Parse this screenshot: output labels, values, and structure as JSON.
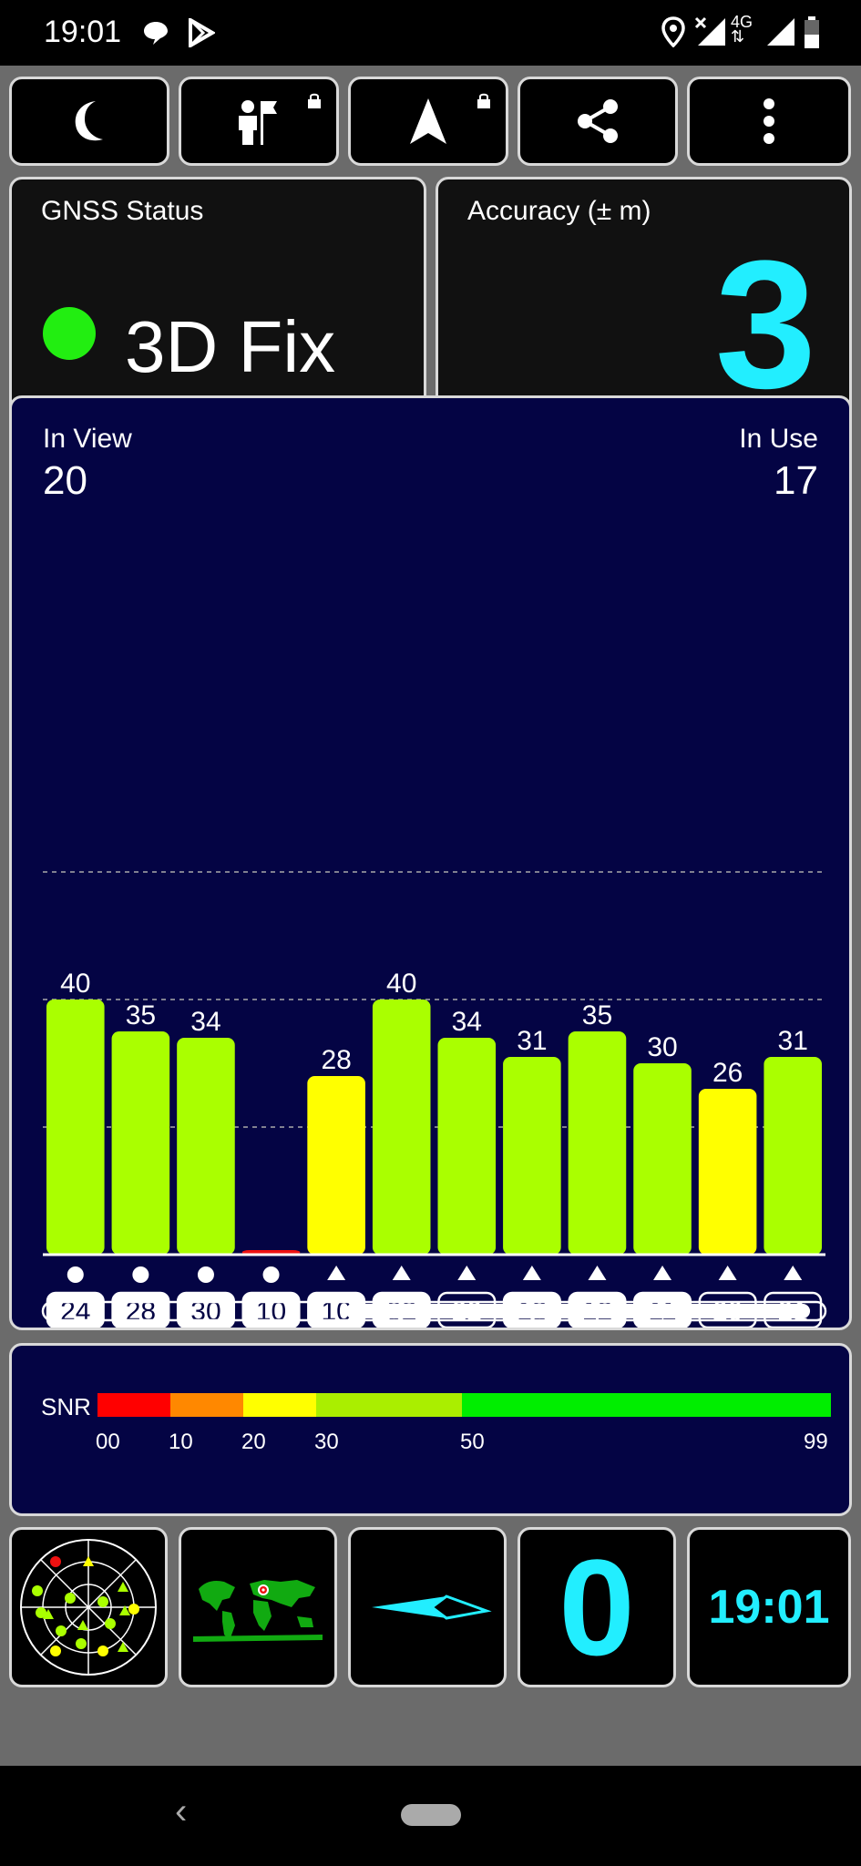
{
  "status_bar": {
    "time": "19:01",
    "icons": [
      "chat-icon",
      "play-store-icon",
      "location-icon",
      "signal-x-icon",
      "4g-icon",
      "signal-icon",
      "battery-icon"
    ],
    "network": "4G"
  },
  "toolbar": {
    "buttons": [
      {
        "icon": "moon-icon"
      },
      {
        "icon": "person-flag-icon",
        "locked": true
      },
      {
        "icon": "navigation-arrow-icon",
        "locked": true
      },
      {
        "icon": "share-icon"
      },
      {
        "icon": "more-vert-icon"
      }
    ]
  },
  "gnss_status": {
    "label": "GNSS Status",
    "value": "3D Fix",
    "status_color": "#22ee11"
  },
  "accuracy": {
    "label": "Accuracy (± m)",
    "value": "3",
    "value_color": "#22eeff"
  },
  "satellites": {
    "in_view_label": "In View",
    "in_view": "20",
    "in_use_label": "In Use",
    "in_use": "17"
  },
  "chart_data": {
    "type": "bar",
    "title": "",
    "ylabel": "SNR",
    "ylim": [
      0,
      60
    ],
    "gridlines": [
      20,
      40,
      60
    ],
    "categories": [
      "24",
      "28",
      "30",
      "10",
      "10",
      "02",
      "22",
      "13",
      "12",
      "11",
      "20",
      "21"
    ],
    "values": [
      40,
      35,
      34,
      0,
      28,
      40,
      34,
      31,
      35,
      30,
      26,
      31
    ],
    "value_labels": [
      "40",
      "35",
      "34",
      "",
      "28",
      "40",
      "34",
      "31",
      "35",
      "30",
      "26",
      "31"
    ],
    "constellation_markers": [
      "circle",
      "circle",
      "circle",
      "circle",
      "triangle",
      "triangle",
      "triangle",
      "triangle",
      "triangle",
      "triangle",
      "triangle",
      "triangle"
    ],
    "used_in_fix": [
      true,
      true,
      true,
      true,
      true,
      true,
      false,
      true,
      true,
      true,
      false,
      false
    ],
    "colors": [
      "#aaff00",
      "#aaff00",
      "#aaff00",
      "#ee1111",
      "#ffff00",
      "#aaff00",
      "#aaff00",
      "#aaff00",
      "#aaff00",
      "#aaff00",
      "#ffff00",
      "#aaff00"
    ]
  },
  "scroll": {
    "position": 0.3866,
    "visible": 0.5937
  },
  "snr_legend": {
    "label": "SNR",
    "segments": [
      {
        "from": 0,
        "to": 10,
        "color": "#ff0000"
      },
      {
        "from": 10,
        "to": 20,
        "color": "#ff8800"
      },
      {
        "from": 20,
        "to": 30,
        "color": "#ffff00"
      },
      {
        "from": 30,
        "to": 50,
        "color": "#aaee00"
      },
      {
        "from": 50,
        "to": 99,
        "color": "#00ee00"
      }
    ],
    "ticks": [
      "00",
      "10",
      "20",
      "30",
      "50",
      "99"
    ]
  },
  "widgets": {
    "sky_plot_icon": "sky-plot-icon",
    "world_map_icon": "world-map-icon",
    "compass_icon": "compass-needle-icon",
    "speed_value": "0",
    "clock": "19:01"
  }
}
